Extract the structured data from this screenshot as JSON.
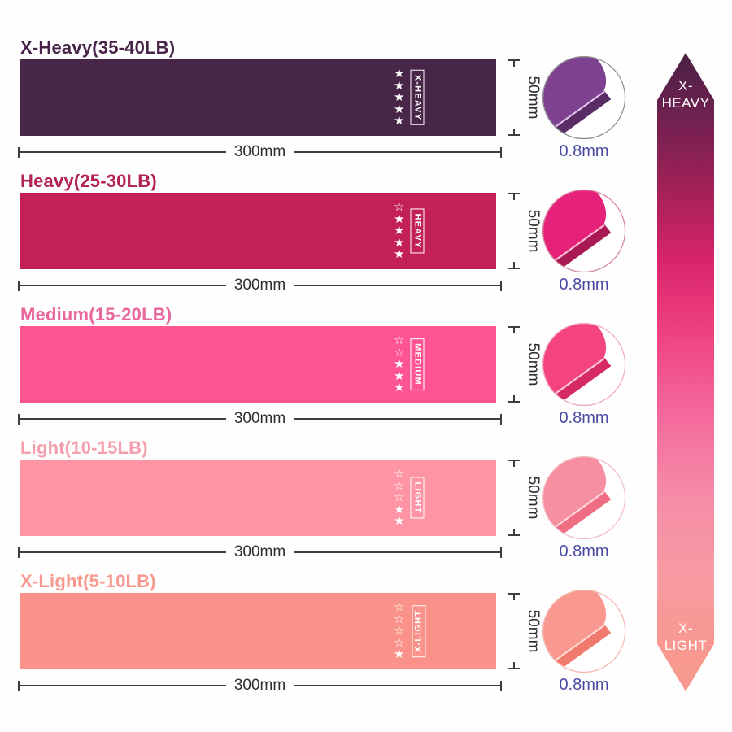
{
  "page": {
    "background": "#fefefe"
  },
  "colors": {
    "dimension_lines": "#3d3d3d",
    "dimension_text": "#2e2e2e",
    "thickness_text": "#4a4aa2",
    "star_color": "#ffffff"
  },
  "bands": [
    {
      "title": "X-Heavy(35-40LB)",
      "tag": "X-HEAVY",
      "stars_filled": 5,
      "stars_total": 5,
      "width_label": "300mm",
      "height_label": "50mm",
      "thickness_label": "0.8mm",
      "band_color": "#482647",
      "title_color": "#462347",
      "photo": {
        "main": "#7e4190",
        "shadow": "#5a2c66",
        "edge": "#e2c6ee",
        "border": "#8f8f8f"
      }
    },
    {
      "title": "Heavy(25-30LB)",
      "tag": "HEAVY",
      "stars_filled": 4,
      "stars_total": 5,
      "width_label": "300mm",
      "height_label": "50mm",
      "thickness_label": "0.8mm",
      "band_color": "#c32057",
      "title_color": "#b22256",
      "photo": {
        "main": "#e62179",
        "shadow": "#a91a55",
        "edge": "#ffc0da",
        "border": "#d583a0"
      }
    },
    {
      "title": "Medium(15-20LB)",
      "tag": "MEDIUM",
      "stars_filled": 3,
      "stars_total": 5,
      "width_label": "300mm",
      "height_label": "50mm",
      "thickness_label": "0.8mm",
      "band_color": "#fe5592",
      "title_color": "#e8679c",
      "photo": {
        "main": "#f4447f",
        "shadow": "#d62a67",
        "edge": "#ffc9dd",
        "border": "#f0a9c0"
      }
    },
    {
      "title": "Light(10-15LB)",
      "tag": "LIGHT",
      "stars_filled": 2,
      "stars_total": 5,
      "width_label": "300mm",
      "height_label": "50mm",
      "thickness_label": "0.8mm",
      "band_color": "#fe94a4",
      "title_color": "#f49fae",
      "photo": {
        "main": "#f68f9f",
        "shadow": "#ef6e84",
        "edge": "#ffd9e0",
        "border": "#f3bdc4"
      }
    },
    {
      "title": "X-Light(5-10LB)",
      "tag": "X-LIGHT",
      "stars_filled": 1,
      "stars_total": 5,
      "width_label": "300mm",
      "height_label": "50mm",
      "thickness_label": "0.8mm",
      "band_color": "#fa9289",
      "title_color": "#f8998f",
      "photo": {
        "main": "#f9988f",
        "shadow": "#f17a6f",
        "edge": "#ffddd6",
        "border": "#f4b8af"
      }
    }
  ],
  "arrow": {
    "top_label": "X-\nHEAVY",
    "bottom_label": "X-\nLIGHT",
    "gradient": [
      "#4a2144 0%",
      "#6f2150 10%",
      "#a52158 22%",
      "#d6246b 32%",
      "#ee3f7f 43%",
      "#f4679c 56%",
      "#f68da8 70%",
      "#f79aa2 82%",
      "#f8988e 94%",
      "#f89a90 100%"
    ]
  }
}
